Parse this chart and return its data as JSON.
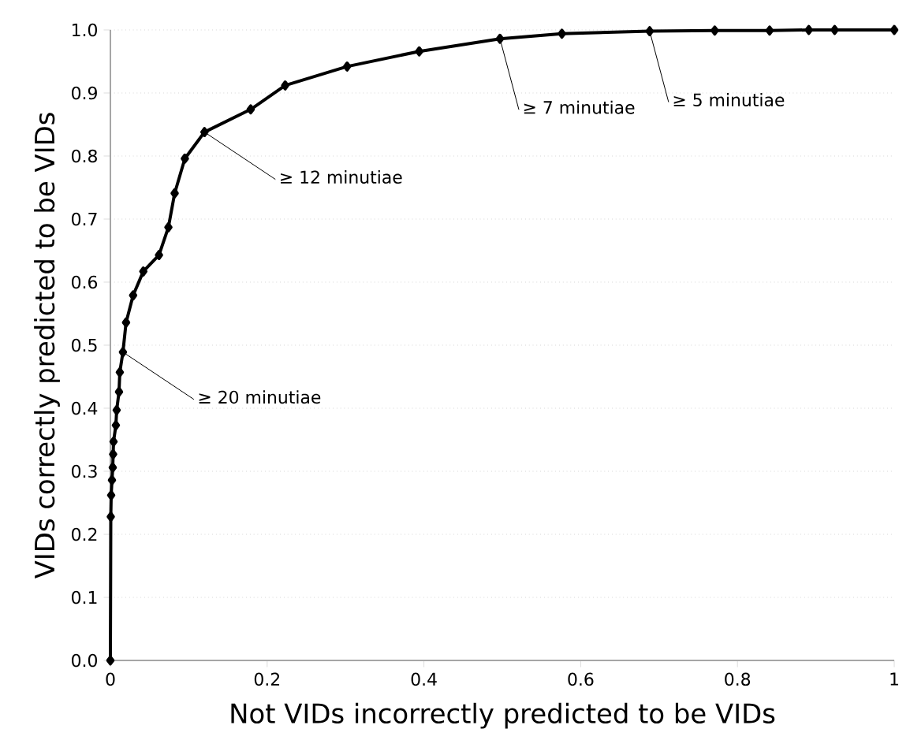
{
  "chart_data": {
    "type": "line",
    "xlabel": "Not VIDs incorrectly predicted to be VIDs",
    "ylabel": "VIDs correctly predicted to be VIDs",
    "x": [
      0,
      0.0005,
      0.001,
      0.002,
      0.003,
      0.0035,
      0.004,
      0.007,
      0.008,
      0.011,
      0.012,
      0.016,
      0.02,
      0.029,
      0.042,
      0.062,
      0.074,
      0.082,
      0.095,
      0.12,
      0.179,
      0.223,
      0.302,
      0.394,
      0.497,
      0.576,
      0.688,
      0.771,
      0.841,
      0.891,
      0.924,
      1.0
    ],
    "series": [
      {
        "color": "#000000",
        "values": [
          0,
          0.228,
          0.262,
          0.286,
          0.306,
          0.327,
          0.347,
          0.373,
          0.397,
          0.426,
          0.457,
          0.489,
          0.536,
          0.579,
          0.617,
          0.643,
          0.687,
          0.741,
          0.796,
          0.838,
          0.874,
          0.912,
          0.942,
          0.966,
          0.986,
          0.994,
          0.998,
          0.999,
          0.999,
          1.0,
          1.0,
          1.0
        ]
      }
    ],
    "xlim": [
      0,
      1
    ],
    "ylim": [
      0,
      1
    ],
    "xticks": [
      0,
      0.2,
      0.4,
      0.6,
      0.8,
      1
    ],
    "yticks": [
      {
        "value": 0,
        "label": "0.0"
      },
      {
        "value": 0.1,
        "label": "0.1"
      },
      {
        "value": 0.2,
        "label": "0.2"
      },
      {
        "value": 0.3,
        "label": "0.3"
      },
      {
        "value": 0.4,
        "label": "0.4"
      },
      {
        "value": 0.5,
        "label": "0.5"
      },
      {
        "value": 0.6,
        "label": "0.6"
      },
      {
        "value": 0.7,
        "label": "0.7"
      },
      {
        "value": 0.8,
        "label": "0.8"
      },
      {
        "value": 0.9,
        "label": "0.9"
      },
      {
        "value": 1,
        "label": "1.0"
      }
    ],
    "grid": "y",
    "marker": "diamond",
    "line_style": "solid",
    "annotations": [
      {
        "text": "≥ 20 minutiae",
        "x": 0.016,
        "y": 0.489
      },
      {
        "text": "≥ 12 minutiae",
        "x": 0.12,
        "y": 0.838
      },
      {
        "text": "≥ 7 minutiae",
        "x": 0.497,
        "y": 0.986
      },
      {
        "text": "≥ 5 minutiae",
        "x": 0.688,
        "y": 0.998
      }
    ]
  }
}
